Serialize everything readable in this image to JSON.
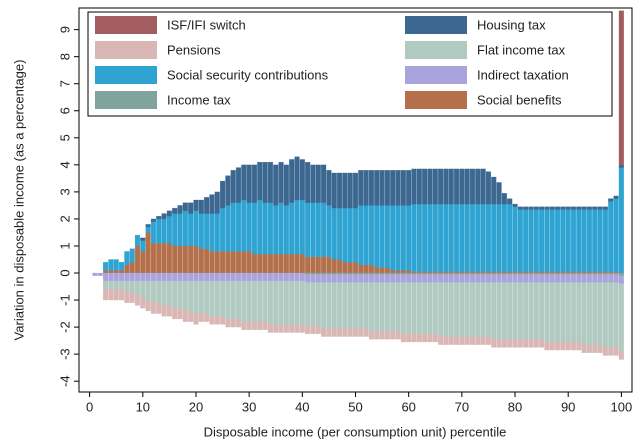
{
  "chart_data": {
    "type": "stacked-bar",
    "x_label": "Disposable income (per consumption unit) percentile",
    "y_label": "Variation in disposable income (as a percentage)",
    "x": [
      1,
      2,
      3,
      4,
      5,
      6,
      7,
      8,
      9,
      10,
      11,
      12,
      13,
      14,
      15,
      16,
      17,
      18,
      19,
      20,
      21,
      22,
      23,
      24,
      25,
      26,
      27,
      28,
      29,
      30,
      31,
      32,
      33,
      34,
      35,
      36,
      37,
      38,
      39,
      40,
      41,
      42,
      43,
      44,
      45,
      46,
      47,
      48,
      49,
      50,
      51,
      52,
      53,
      54,
      55,
      56,
      57,
      58,
      59,
      60,
      61,
      62,
      63,
      64,
      65,
      66,
      67,
      68,
      69,
      70,
      71,
      72,
      73,
      74,
      75,
      76,
      77,
      78,
      79,
      80,
      81,
      82,
      83,
      84,
      85,
      86,
      87,
      88,
      89,
      90,
      91,
      92,
      93,
      94,
      95,
      96,
      97,
      98,
      99,
      100
    ],
    "xlim": [
      -2,
      102
    ],
    "xticks": [
      0,
      10,
      20,
      30,
      40,
      50,
      60,
      70,
      80,
      90,
      100
    ],
    "ylim": [
      -4.4,
      9.8
    ],
    "yticks": [
      -4,
      -3,
      -2,
      -1,
      0,
      1,
      2,
      3,
      4,
      5,
      6,
      7,
      8,
      9
    ],
    "legend_position": "top",
    "series": [
      {
        "name": "ISF/IFI switch",
        "color": "#a35d62",
        "values": [
          0,
          0,
          0,
          0,
          0,
          0,
          0,
          0,
          0,
          0,
          0,
          0,
          0,
          0,
          0,
          0,
          0,
          0,
          0,
          0,
          0,
          0,
          0,
          0,
          0,
          0,
          0,
          0,
          0,
          0,
          0,
          0,
          0,
          0,
          0,
          0,
          0,
          0,
          0,
          0,
          0,
          0,
          0,
          0,
          0,
          0,
          0,
          0,
          0,
          0,
          0,
          0,
          0,
          0,
          0,
          0,
          0,
          0,
          0,
          0,
          0,
          0,
          0,
          0,
          0,
          0,
          0,
          0,
          0,
          0,
          0,
          0,
          0,
          0,
          0,
          0,
          0,
          0,
          0,
          0,
          0,
          0,
          0,
          0,
          0,
          0,
          0,
          0,
          0,
          0,
          0,
          0,
          0,
          0,
          0,
          0,
          0,
          0,
          0,
          5.7
        ]
      },
      {
        "name": "Housing tax",
        "color": "#3b6790",
        "values": [
          0,
          0,
          0,
          0,
          0,
          0,
          0,
          0,
          0,
          0.1,
          0.1,
          0.1,
          0.1,
          0.2,
          0.2,
          0.2,
          0.3,
          0.3,
          0.4,
          0.4,
          0.5,
          0.6,
          0.7,
          0.8,
          1.0,
          1.1,
          1.2,
          1.3,
          1.3,
          1.4,
          1.4,
          1.4,
          1.5,
          1.5,
          1.5,
          1.5,
          1.5,
          1.6,
          1.6,
          1.5,
          1.5,
          1.4,
          1.4,
          1.4,
          1.3,
          1.3,
          1.3,
          1.3,
          1.3,
          1.3,
          1.3,
          1.3,
          1.3,
          1.3,
          1.3,
          1.3,
          1.3,
          1.3,
          1.3,
          1.3,
          1.3,
          1.3,
          1.3,
          1.3,
          1.3,
          1.3,
          1.3,
          1.3,
          1.3,
          1.3,
          1.3,
          1.3,
          1.3,
          1.3,
          1.2,
          1.0,
          0.8,
          0.4,
          0.2,
          0.1,
          0.1,
          0.1,
          0.1,
          0.1,
          0.1,
          0.1,
          0.1,
          0.1,
          0.1,
          0.1,
          0.1,
          0.1,
          0.1,
          0.1,
          0.1,
          0.1,
          0.1,
          0.1,
          0.1,
          0.1
        ]
      },
      {
        "name": "Pensions",
        "color": "#d8b7b5",
        "values": [
          0,
          0,
          -0.4,
          -0.4,
          -0.4,
          -0.4,
          -0.4,
          -0.4,
          -0.4,
          -0.4,
          -0.4,
          -0.4,
          -0.4,
          -0.4,
          -0.4,
          -0.4,
          -0.4,
          -0.4,
          -0.4,
          -0.4,
          -0.3,
          -0.3,
          -0.3,
          -0.3,
          -0.3,
          -0.3,
          -0.3,
          -0.3,
          -0.3,
          -0.3,
          -0.3,
          -0.3,
          -0.3,
          -0.3,
          -0.3,
          -0.3,
          -0.3,
          -0.3,
          -0.3,
          -0.3,
          -0.3,
          -0.3,
          -0.3,
          -0.3,
          -0.3,
          -0.3,
          -0.3,
          -0.3,
          -0.3,
          -0.3,
          -0.3,
          -0.3,
          -0.3,
          -0.3,
          -0.3,
          -0.3,
          -0.3,
          -0.3,
          -0.3,
          -0.3,
          -0.3,
          -0.3,
          -0.3,
          -0.3,
          -0.3,
          -0.3,
          -0.3,
          -0.3,
          -0.3,
          -0.3,
          -0.3,
          -0.3,
          -0.3,
          -0.3,
          -0.3,
          -0.3,
          -0.3,
          -0.3,
          -0.3,
          -0.3,
          -0.3,
          -0.3,
          -0.3,
          -0.3,
          -0.3,
          -0.3,
          -0.3,
          -0.3,
          -0.3,
          -0.3,
          -0.3,
          -0.3,
          -0.3,
          -0.3,
          -0.3,
          -0.3,
          -0.3,
          -0.3,
          -0.3,
          -0.3
        ]
      },
      {
        "name": "Flat income tax",
        "color": "#b1cac2",
        "values": [
          0,
          0,
          -0.3,
          -0.3,
          -0.3,
          -0.3,
          -0.4,
          -0.4,
          -0.5,
          -0.6,
          -0.7,
          -0.8,
          -0.8,
          -0.9,
          -0.9,
          -1.0,
          -1.0,
          -1.1,
          -1.1,
          -1.2,
          -1.2,
          -1.2,
          -1.3,
          -1.3,
          -1.3,
          -1.4,
          -1.4,
          -1.4,
          -1.5,
          -1.5,
          -1.5,
          -1.5,
          -1.5,
          -1.6,
          -1.6,
          -1.6,
          -1.6,
          -1.6,
          -1.6,
          -1.6,
          -1.6,
          -1.6,
          -1.6,
          -1.7,
          -1.7,
          -1.7,
          -1.7,
          -1.7,
          -1.7,
          -1.7,
          -1.7,
          -1.7,
          -1.8,
          -1.8,
          -1.8,
          -1.8,
          -1.8,
          -1.8,
          -1.9,
          -1.9,
          -1.9,
          -1.9,
          -1.9,
          -1.9,
          -1.9,
          -2.0,
          -2.0,
          -2.0,
          -2.0,
          -2.0,
          -2.0,
          -2.0,
          -2.0,
          -2.0,
          -2.0,
          -2.1,
          -2.1,
          -2.1,
          -2.1,
          -2.1,
          -2.1,
          -2.1,
          -2.1,
          -2.1,
          -2.1,
          -2.2,
          -2.2,
          -2.2,
          -2.2,
          -2.2,
          -2.2,
          -2.2,
          -2.3,
          -2.3,
          -2.3,
          -2.3,
          -2.4,
          -2.4,
          -2.4,
          -2.5
        ]
      },
      {
        "name": "Social security contributions",
        "color": "#2fa3d1",
        "values": [
          0,
          0,
          0.3,
          0.4,
          0.4,
          0.3,
          0.5,
          0.5,
          0.4,
          0.4,
          0.2,
          0.8,
          0.9,
          0.9,
          1.0,
          1.2,
          1.2,
          1.3,
          1.2,
          1.3,
          1.3,
          1.3,
          1.4,
          1.4,
          1.6,
          1.7,
          1.8,
          1.8,
          1.9,
          1.8,
          1.9,
          2.0,
          1.9,
          1.9,
          1.8,
          1.9,
          1.8,
          1.9,
          2.0,
          2.0,
          2.0,
          2.0,
          2.0,
          2.0,
          1.9,
          1.9,
          1.9,
          2.0,
          2.0,
          2.0,
          2.2,
          2.2,
          2.2,
          2.3,
          2.3,
          2.3,
          2.4,
          2.4,
          2.4,
          2.4,
          2.5,
          2.5,
          2.5,
          2.5,
          2.5,
          2.5,
          2.5,
          2.5,
          2.5,
          2.5,
          2.5,
          2.5,
          2.5,
          2.5,
          2.5,
          2.5,
          2.5,
          2.5,
          2.5,
          2.4,
          2.3,
          2.3,
          2.3,
          2.3,
          2.3,
          2.3,
          2.3,
          2.3,
          2.3,
          2.3,
          2.3,
          2.3,
          2.3,
          2.3,
          2.3,
          2.3,
          2.3,
          2.6,
          2.7,
          3.9
        ]
      },
      {
        "name": "Indirect taxation",
        "color": "#aaa4dc",
        "values": [
          -0.1,
          -0.1,
          -0.3,
          -0.3,
          -0.3,
          -0.3,
          -0.3,
          -0.3,
          -0.3,
          -0.3,
          -0.3,
          -0.3,
          -0.3,
          -0.3,
          -0.3,
          -0.3,
          -0.3,
          -0.3,
          -0.3,
          -0.3,
          -0.3,
          -0.3,
          -0.3,
          -0.3,
          -0.3,
          -0.3,
          -0.3,
          -0.3,
          -0.3,
          -0.3,
          -0.3,
          -0.3,
          -0.3,
          -0.3,
          -0.3,
          -0.3,
          -0.3,
          -0.3,
          -0.3,
          -0.3,
          -0.3,
          -0.3,
          -0.3,
          -0.3,
          -0.3,
          -0.3,
          -0.3,
          -0.3,
          -0.3,
          -0.3,
          -0.3,
          -0.3,
          -0.3,
          -0.3,
          -0.3,
          -0.3,
          -0.3,
          -0.3,
          -0.3,
          -0.3,
          -0.3,
          -0.3,
          -0.3,
          -0.3,
          -0.3,
          -0.3,
          -0.3,
          -0.3,
          -0.3,
          -0.3,
          -0.3,
          -0.3,
          -0.3,
          -0.3,
          -0.3,
          -0.3,
          -0.3,
          -0.3,
          -0.3,
          -0.3,
          -0.3,
          -0.3,
          -0.3,
          -0.3,
          -0.3,
          -0.3,
          -0.3,
          -0.3,
          -0.3,
          -0.3,
          -0.3,
          -0.3,
          -0.3,
          -0.3,
          -0.3,
          -0.3,
          -0.3,
          -0.3,
          -0.3,
          -0.3
        ]
      },
      {
        "name": "Income tax",
        "color": "#80a49b",
        "values": [
          0,
          0,
          0,
          0,
          0,
          0,
          0,
          0,
          0,
          0,
          0,
          0,
          0,
          0,
          0,
          0,
          0,
          0,
          0,
          0,
          0,
          0,
          0,
          0,
          0,
          0,
          0,
          0,
          0,
          0,
          0,
          0,
          0,
          0,
          0,
          0,
          0,
          0,
          0,
          0,
          -0.05,
          -0.05,
          -0.05,
          -0.05,
          -0.05,
          -0.05,
          -0.05,
          -0.05,
          -0.05,
          -0.05,
          -0.05,
          -0.05,
          -0.05,
          -0.05,
          -0.05,
          -0.05,
          -0.05,
          -0.05,
          -0.05,
          -0.05,
          -0.05,
          -0.05,
          -0.05,
          -0.05,
          -0.05,
          -0.05,
          -0.05,
          -0.05,
          -0.05,
          -0.05,
          -0.05,
          -0.05,
          -0.05,
          -0.05,
          -0.05,
          -0.05,
          -0.05,
          -0.05,
          -0.05,
          -0.05,
          -0.05,
          -0.05,
          -0.05,
          -0.05,
          -0.05,
          -0.05,
          -0.05,
          -0.05,
          -0.05,
          -0.05,
          -0.05,
          -0.05,
          -0.05,
          -0.05,
          -0.05,
          -0.05,
          -0.05,
          -0.05,
          -0.05,
          -0.1
        ]
      },
      {
        "name": "Social benefits",
        "color": "#b3704b",
        "values": [
          0,
          0,
          0.1,
          0.1,
          0.1,
          0.1,
          0.3,
          0.4,
          1.0,
          0.8,
          1.5,
          1.1,
          1.1,
          1.1,
          1.1,
          1.0,
          1.0,
          1.0,
          1.0,
          1.0,
          0.9,
          0.9,
          0.8,
          0.8,
          0.8,
          0.8,
          0.8,
          0.8,
          0.8,
          0.8,
          0.7,
          0.7,
          0.7,
          0.7,
          0.7,
          0.7,
          0.7,
          0.7,
          0.7,
          0.7,
          0.6,
          0.6,
          0.6,
          0.6,
          0.6,
          0.5,
          0.5,
          0.4,
          0.4,
          0.4,
          0.3,
          0.3,
          0.3,
          0.2,
          0.2,
          0.2,
          0.1,
          0.1,
          0.1,
          0.1,
          0.05,
          0.05,
          0.05,
          0.05,
          0.05,
          0.05,
          0.05,
          0.05,
          0.05,
          0.05,
          0.05,
          0.05,
          0.05,
          0.05,
          0.05,
          0.05,
          0.05,
          0.05,
          0.05,
          0.05,
          0.05,
          0.05,
          0.05,
          0.05,
          0.05,
          0.05,
          0.05,
          0.05,
          0.05,
          0.05,
          0.05,
          0.05,
          0.05,
          0.05,
          0.05,
          0.05,
          0.05,
          0.05,
          0.05,
          0
        ]
      }
    ]
  }
}
